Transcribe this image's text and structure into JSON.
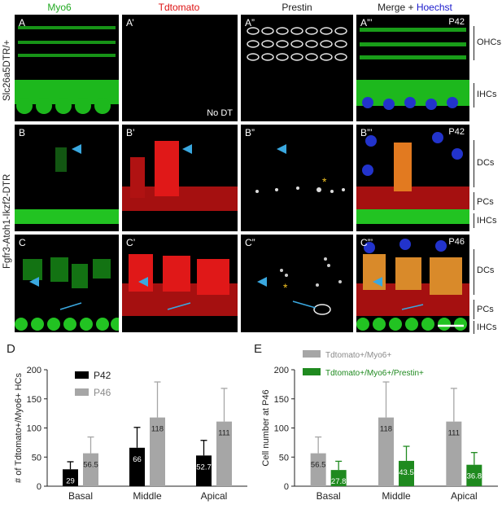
{
  "columns": {
    "myo6": "Myo6",
    "tdtomato": "Tdtomato",
    "prestin": "Prestin",
    "merge": "Merge + ",
    "hoechst": "Hoechst",
    "colors": {
      "myo6": "#22aa22",
      "tdtomato": "#dd1111",
      "prestin": "#111111",
      "hoechst": "#1a1acc"
    }
  },
  "rows": [
    {
      "genotype": "Slc26a5DTR/+",
      "labels": [
        "A",
        "A’",
        "A”",
        "A”’"
      ],
      "age": "P42",
      "note": "No DT",
      "brackets": [
        {
          "label": "OHCs"
        },
        {
          "label": "IHCs"
        }
      ]
    },
    {
      "genotype": "Fgfr3-Atoh1-Ikzf2-DTR",
      "labels": [
        "B",
        "B’",
        "B”",
        "B”’"
      ],
      "age": "P42",
      "brackets": [
        {
          "label": "DCs"
        },
        {
          "label": "PCs"
        },
        {
          "label": "IHCs"
        }
      ]
    },
    {
      "genotype": "",
      "labels": [
        "C",
        "C’",
        "C”",
        "C”’"
      ],
      "age": "P46",
      "brackets": [
        {
          "label": "DCs"
        },
        {
          "label": "PCs"
        },
        {
          "label": "IHCs"
        }
      ]
    }
  ],
  "panel_d": {
    "letter": "D"
  },
  "panel_e": {
    "letter": "E"
  },
  "chart_data": [
    {
      "type": "bar",
      "ylabel": "# of Tdtomato+/Myo6+ HCs",
      "categories": [
        "Basal",
        "Middle",
        "Apical"
      ],
      "ylim": [
        0,
        200
      ],
      "yticks": [
        0,
        50,
        100,
        150,
        200
      ],
      "series": [
        {
          "name": "P42",
          "color": "#000000",
          "values": [
            29,
            66,
            52.7
          ],
          "labels": [
            "29",
            "66",
            "52.7"
          ],
          "errors": [
            13,
            35,
            26
          ]
        },
        {
          "name": "P46",
          "color": "#a6a6a6",
          "values": [
            56.5,
            118,
            111
          ],
          "labels": [
            "56.5",
            "118",
            "111"
          ],
          "errors": [
            28,
            61,
            57
          ]
        }
      ]
    },
    {
      "type": "bar",
      "ylabel": "Cell number at P46",
      "categories": [
        "Basal",
        "Middle",
        "Apical"
      ],
      "ylim": [
        0,
        200
      ],
      "yticks": [
        0,
        50,
        100,
        150,
        200
      ],
      "series": [
        {
          "name": "Tdtomato+/Myo6+",
          "color": "#a6a6a6",
          "values": [
            56.5,
            118,
            111
          ],
          "labels": [
            "56.5",
            "118",
            "111"
          ],
          "errors": [
            28,
            61,
            57
          ]
        },
        {
          "name": "Tdtomato+/Myo6+/Prestin+",
          "color": "#1f8a1f",
          "values": [
            27.8,
            43.5,
            36.8
          ],
          "labels": [
            "27.8",
            "43.5",
            "36.8"
          ],
          "errors": [
            15,
            25,
            21
          ]
        }
      ]
    }
  ]
}
